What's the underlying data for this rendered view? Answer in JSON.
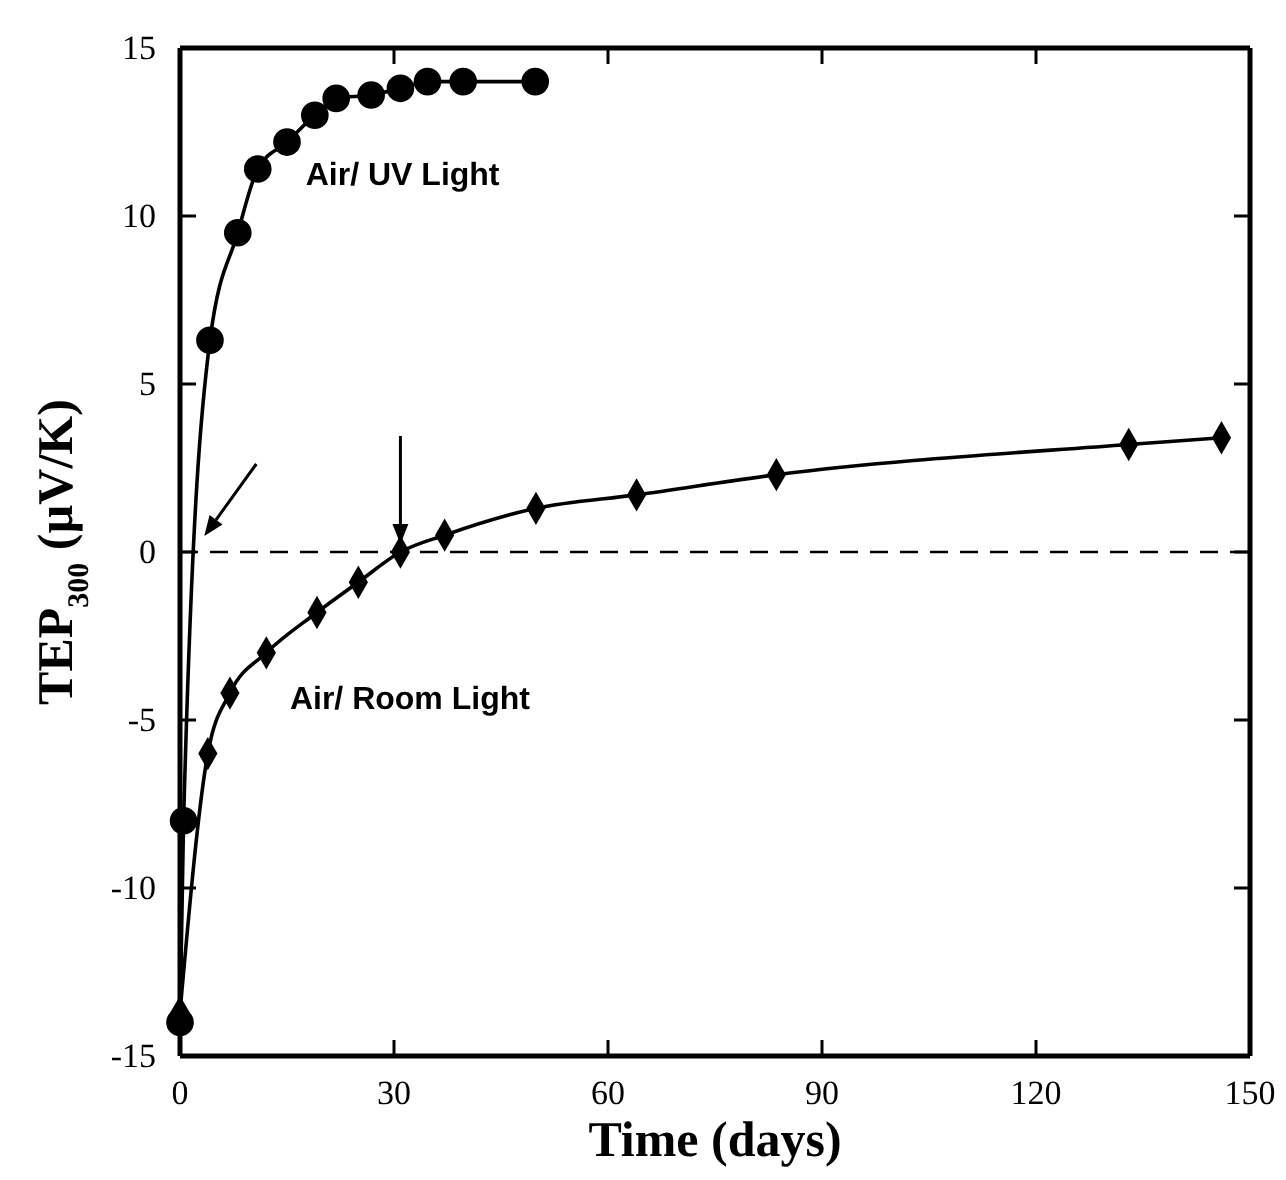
{
  "chart_data": {
    "type": "line",
    "xlabel": "Time (days)",
    "ylabel": "TEP$_{300}$ (µV/K)",
    "xlim": [
      0,
      150
    ],
    "xticks": [
      0,
      30,
      60,
      90,
      120,
      150
    ],
    "ylim": [
      -15,
      15
    ],
    "yticks": [
      -15,
      -10,
      -5,
      0,
      5,
      10,
      15
    ],
    "grid": false,
    "series": [
      {
        "name": "Air/ UV Light",
        "color": "#000000",
        "marker": "circle",
        "x": [
          0,
          0.5,
          4.2,
          8.1,
          10.9,
          15,
          18.9,
          21.9,
          26.8,
          30.9,
          34.7,
          39.7,
          49.8
        ],
        "values": [
          -14,
          -8,
          6.3,
          9.5,
          11.4,
          12.2,
          13,
          13.5,
          13.6,
          13.8,
          14,
          14,
          14
        ]
      },
      {
        "name": "Air/ Room Light",
        "color": "#000000",
        "marker": "diamond",
        "x": [
          0,
          3.9,
          7,
          12.1,
          19.2,
          25,
          30.9,
          37.1,
          49.9,
          64,
          83.6,
          133,
          146
        ],
        "values": [
          -13.7,
          -6,
          -4.2,
          -3,
          -1.8,
          -0.9,
          0,
          0.5,
          1.3,
          1.7,
          2.3,
          3.2,
          3.4
        ]
      }
    ],
    "ref_lines": [
      {
        "axis": "y",
        "value": 0,
        "line_style": "dashed",
        "color": "#000000"
      }
    ]
  }
}
